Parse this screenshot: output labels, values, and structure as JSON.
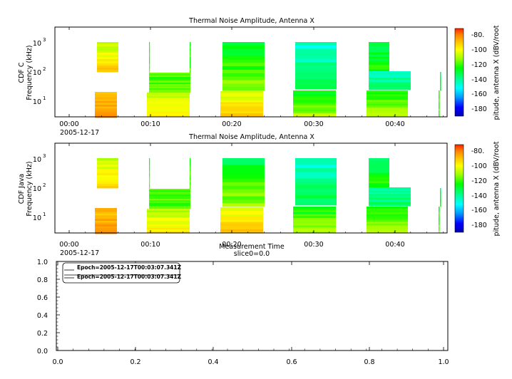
{
  "colors": {
    "background": "#ffffff",
    "axis": "#000000",
    "colorbar_stops": [
      "#0000b0",
      "#0000ff",
      "#00a0ff",
      "#00ffff",
      "#00ff80",
      "#00ff00",
      "#a0ff00",
      "#ffff00",
      "#ffc000",
      "#ff8000",
      "#ff2000"
    ]
  },
  "chart_data": [
    {
      "type": "heatmap",
      "title": "Thermal Noise Amplitude, Antenna X",
      "ylabel_line1": "CDF C",
      "ylabel_line2": "Frequency (kHz)",
      "yscale": "log",
      "ylim": [
        3,
        3000
      ],
      "y_ticks": [
        "10",
        "10",
        "10"
      ],
      "y_tick_exponents": [
        "3",
        "2",
        "1"
      ],
      "x_ticks": [
        "00:00",
        "00:10",
        "00:20",
        "00:30",
        "00:40"
      ],
      "x_date": "2005-12-17",
      "colorbar_label": "pitude, antenna X (dBV/root",
      "colorbar_range": [
        -190,
        -75
      ],
      "colorbar_ticks": [
        "-80.",
        "-100",
        "-120",
        "-140",
        "-160",
        "-180"
      ]
    },
    {
      "type": "heatmap",
      "title": "Thermal Noise Amplitude, Antenna X",
      "ylabel_line1": "CDF Java",
      "ylabel_line2": "Frequency (kHz)",
      "yscale": "log",
      "ylim": [
        3,
        3000
      ],
      "y_ticks": [
        "10",
        "10",
        "10"
      ],
      "y_tick_exponents": [
        "3",
        "2",
        "1"
      ],
      "x_ticks": [
        "00:00",
        "00:10",
        "00:20",
        "00:30",
        "00:40"
      ],
      "x_date": "2005-12-17",
      "xlabel": "Measurement Time",
      "colorbar_label": "pitude, antenna X (dBV/root",
      "colorbar_range": [
        -190,
        -75
      ],
      "colorbar_ticks": [
        "-80.",
        "-100",
        "-120",
        "-140",
        "-160",
        "-180"
      ]
    },
    {
      "type": "line",
      "title": "slice0=0.0",
      "xlim": [
        0,
        1
      ],
      "ylim": [
        0,
        1
      ],
      "x_ticks": [
        "0.0",
        "0.2",
        "0.4",
        "0.6",
        "0.8",
        "1.0"
      ],
      "y_ticks": [
        "1.0",
        "0.8",
        "0.6",
        "0.4",
        "0.2",
        "0.0"
      ],
      "legend": [
        "Epoch=2005-12-17T00:03:07.341Z",
        "Epoch=2005-12-17T00:03:07.341Z"
      ],
      "legend_position": "top-left"
    }
  ]
}
